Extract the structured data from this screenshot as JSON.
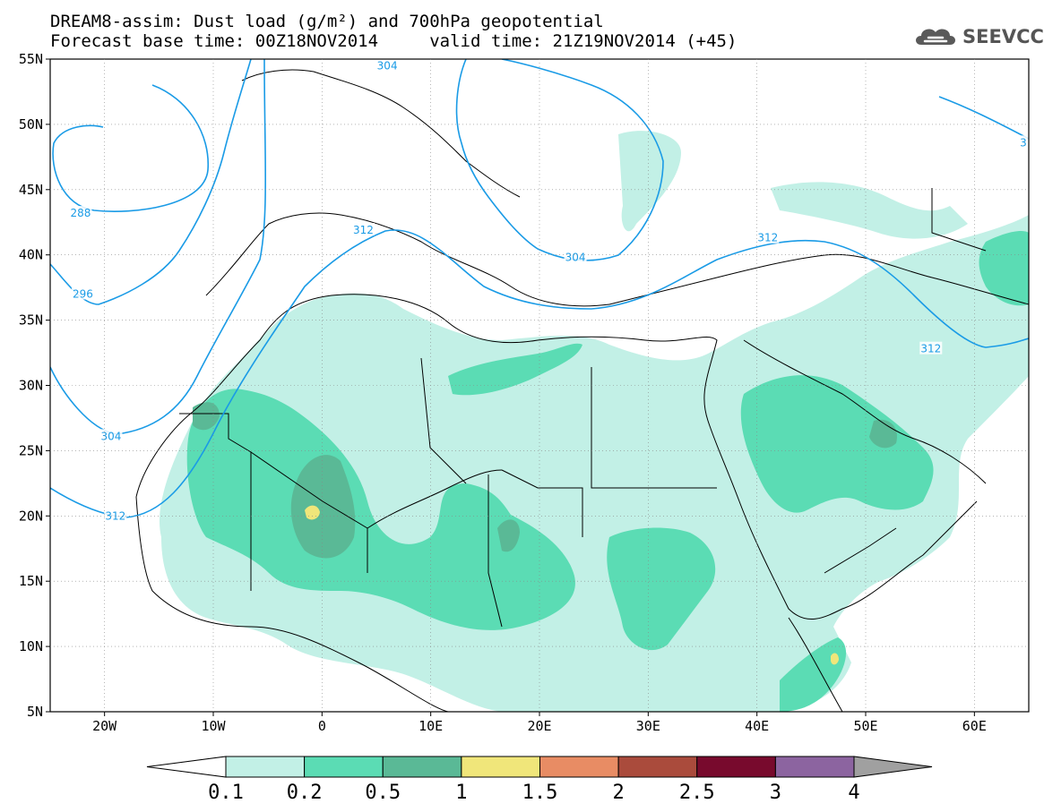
{
  "title": {
    "line1": "DREAM8-assim: Dust load (g/m²) and 700hPa geopotential",
    "line2": "Forecast base time: 00Z18NOV2014     valid time: 21Z19NOV2014 (+45)"
  },
  "logo": {
    "text": "SEEVCCC",
    "icon": "cloud-icon"
  },
  "axes": {
    "lon_labels": [
      "20W",
      "10W",
      "0",
      "10E",
      "20E",
      "30E",
      "40E",
      "50E",
      "60E"
    ],
    "lat_labels": [
      "55N",
      "50N",
      "45N",
      "40N",
      "35N",
      "30N",
      "25N",
      "20N",
      "15N",
      "10N",
      "5N"
    ],
    "lon_range": [
      -25,
      65
    ],
    "lat_range": [
      5,
      55
    ]
  },
  "colorbar": {
    "labels": [
      "0.1",
      "0.2",
      "0.5",
      "1",
      "1.5",
      "2",
      "2.5",
      "3",
      "4"
    ],
    "colors": [
      "#c2f0e6",
      "#5bdcb4",
      "#5ab996",
      "#f0e67a",
      "#e88c64",
      "#aa4b3c",
      "#780a2d",
      "#8c64a0"
    ],
    "under_color": "#ffffff",
    "over_color": "#a0a0a0"
  },
  "contours": {
    "color": "#1a9be6",
    "labels": [
      {
        "text": "288",
        "lon": -22.2,
        "lat": 43.2
      },
      {
        "text": "296",
        "lon": -22.0,
        "lat": 37.0
      },
      {
        "text": "304",
        "lon": -19.4,
        "lat": 26.1
      },
      {
        "text": "312",
        "lon": -19.0,
        "lat": 20.0
      },
      {
        "text": "312",
        "lon": 3.8,
        "lat": 41.9
      },
      {
        "text": "304",
        "lon": 23.3,
        "lat": 39.8
      },
      {
        "text": "312",
        "lon": 41.0,
        "lat": 41.3
      },
      {
        "text": "312",
        "lon": 56.0,
        "lat": 32.8
      },
      {
        "text": "304",
        "lon": 6.0,
        "lat": 54.5
      },
      {
        "text": "3",
        "lon": 64.5,
        "lat": 48.6
      }
    ]
  },
  "chart_data": {
    "type": "map",
    "variable": "Dust load (g/m²)",
    "overlay": "700hPa geopotential",
    "contour_levels": [
      288,
      296,
      304,
      312
    ]
  }
}
